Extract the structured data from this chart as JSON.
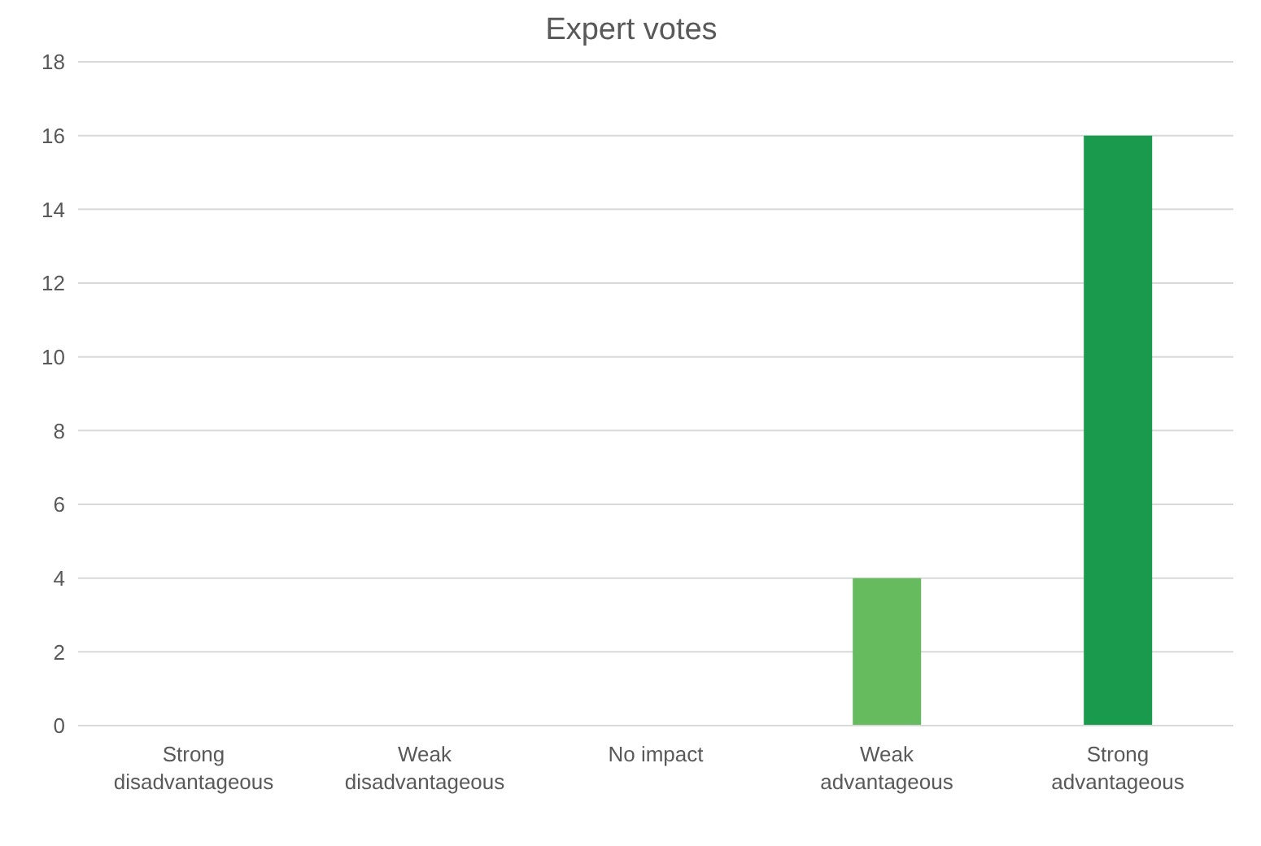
{
  "chart_data": {
    "type": "bar",
    "title": "Expert votes",
    "categories": [
      "Strong disadvantageous",
      "Weak disadvantageous",
      "No impact",
      "Weak advantageous",
      "Strong advantageous"
    ],
    "values": [
      0,
      0,
      0,
      4,
      16
    ],
    "colors": [
      "#c0504d",
      "#e6a0a0",
      "#a6a6a6",
      "#66bb5e",
      "#1a9a4c"
    ],
    "ylim": [
      0,
      18
    ],
    "yticks": [
      0,
      2,
      4,
      6,
      8,
      10,
      12,
      14,
      16,
      18
    ],
    "grid": "y",
    "legend": false
  }
}
